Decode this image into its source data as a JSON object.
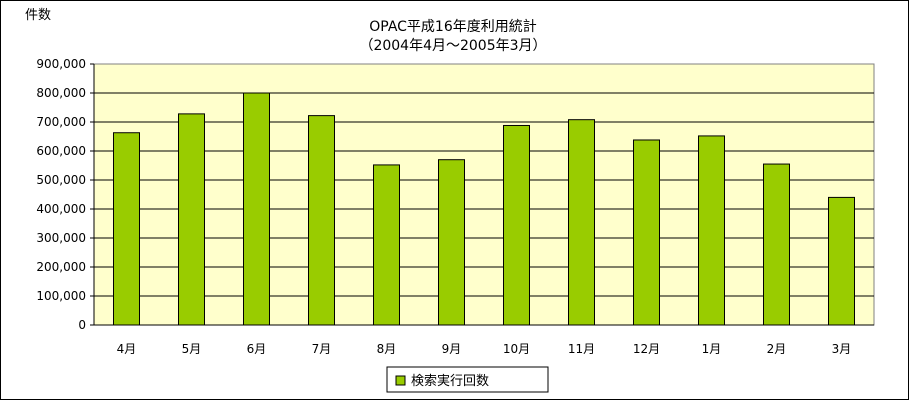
{
  "chart_data": {
    "type": "bar",
    "title": "OPAC平成16年度利用統計",
    "subtitle": "（2004年4月～2005年3月）",
    "ylabel": "件数",
    "xlabel": "",
    "categories": [
      "4月",
      "5月",
      "6月",
      "7月",
      "8月",
      "9月",
      "10月",
      "11月",
      "12月",
      "1月",
      "2月",
      "3月"
    ],
    "series": [
      {
        "name": "検索実行回数",
        "values": [
          663000,
          728000,
          800000,
          722000,
          552000,
          570000,
          688000,
          708000,
          638000,
          652000,
          555000,
          440000
        ]
      }
    ],
    "ylim": [
      0,
      900000
    ],
    "yticks": [
      0,
      100000,
      200000,
      300000,
      400000,
      500000,
      600000,
      700000,
      800000,
      900000
    ],
    "ytick_labels": [
      "0",
      "100,000",
      "200,000",
      "300,000",
      "400,000",
      "500,000",
      "600,000",
      "700,000",
      "800,000",
      "900,000"
    ],
    "grid": true,
    "legend_position": "bottom",
    "colors": {
      "bar": "#99cc00",
      "plot_bg": "#ffffcc",
      "grid": "#000000"
    }
  }
}
